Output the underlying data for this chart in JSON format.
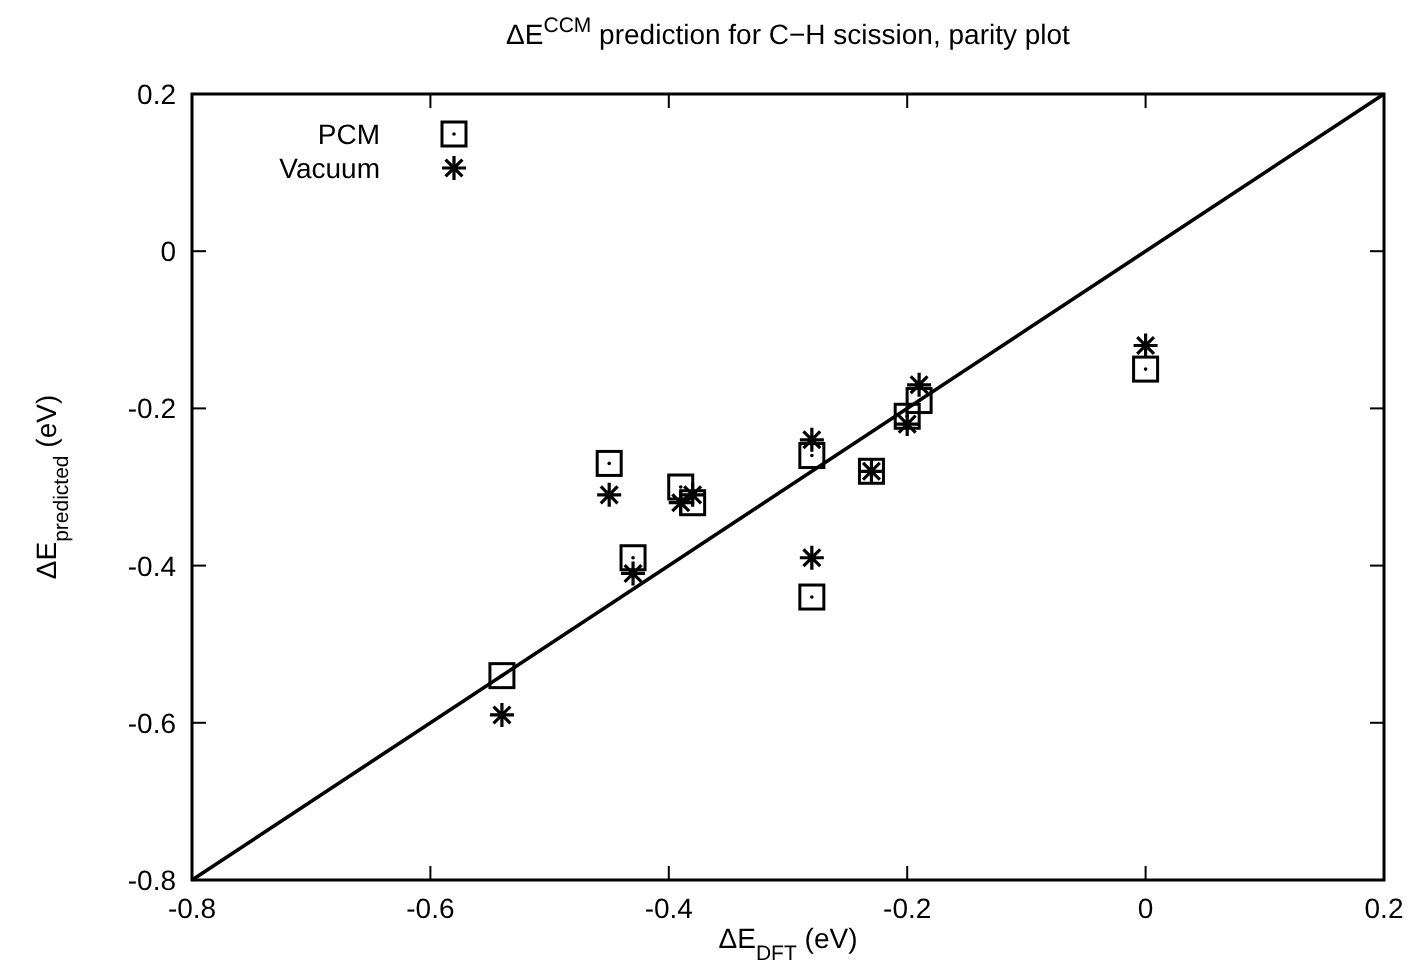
{
  "chart_data": {
    "type": "scatter",
    "title": "ΔE$^{CCM}$ prediction for C−H scission, parity plot",
    "xlabel": "ΔE$_{DFT}$ (eV)",
    "ylabel": "ΔE$_{predicted}$ (eV)",
    "xlim": [
      -0.8,
      0.2
    ],
    "ylim": [
      -0.8,
      0.2
    ],
    "xticks": [
      -0.8,
      -0.6,
      -0.4,
      -0.2,
      0,
      0.2
    ],
    "yticks": [
      -0.8,
      -0.6,
      -0.4,
      -0.2,
      0,
      0.2
    ],
    "grid": false,
    "legend": "top left",
    "series": [
      {
        "type": "line",
        "color": "#000000",
        "x": [
          -0.8,
          0.2
        ],
        "values": [
          -0.8,
          0.2
        ],
        "marker": "none",
        "line_style": "solid"
      },
      {
        "name": "PCM",
        "color": "#000000",
        "marker": "square",
        "x": [
          -0.54,
          -0.45,
          -0.43,
          -0.39,
          -0.38,
          -0.28,
          -0.28,
          -0.23,
          -0.2,
          -0.19,
          0
        ],
        "values": [
          -0.54,
          -0.27,
          -0.39,
          -0.3,
          -0.32,
          -0.26,
          -0.44,
          -0.28,
          -0.21,
          -0.19,
          -0.15
        ]
      },
      {
        "name": "Vacuum",
        "color": "#000000",
        "marker": "cross",
        "x": [
          -0.54,
          -0.45,
          -0.43,
          -0.39,
          -0.38,
          -0.28,
          -0.28,
          -0.23,
          -0.2,
          -0.19,
          0
        ],
        "values": [
          -0.59,
          -0.31,
          -0.41,
          -0.32,
          -0.31,
          -0.24,
          -0.39,
          -0.28,
          -0.22,
          -0.17,
          -0.12
        ]
      }
    ]
  }
}
